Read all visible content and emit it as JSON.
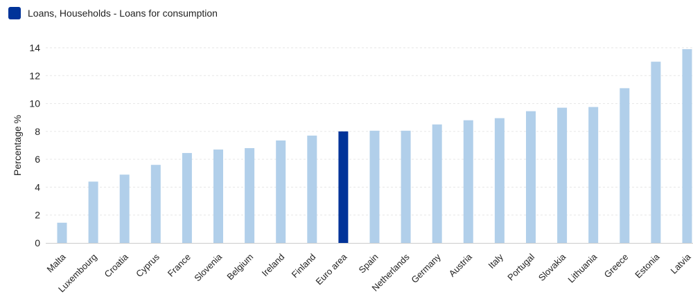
{
  "chart_data": {
    "type": "bar",
    "series": [
      {
        "name": "Loans, Households - Loans for consumption"
      }
    ],
    "categories": [
      "Malta",
      "Luxembourg",
      "Croatia",
      "Cyprus",
      "France",
      "Slovenia",
      "Belgium",
      "Ireland",
      "Finland",
      "Euro area",
      "Spain",
      "Netherlands",
      "Germany",
      "Austria",
      "Italy",
      "Portugal",
      "Slovakia",
      "Lithuania",
      "Greece",
      "Estonia",
      "Latvia"
    ],
    "values": [
      1.45,
      4.4,
      4.9,
      5.6,
      6.45,
      6.7,
      6.8,
      7.35,
      7.7,
      8.0,
      8.05,
      8.05,
      8.5,
      8.8,
      8.95,
      9.45,
      9.7,
      9.75,
      11.1,
      13.0,
      13.9
    ],
    "highlight_category": "Euro area",
    "colors": {
      "default": "#b1cfea",
      "highlight": "#003399"
    },
    "ylabel": "Percentage %",
    "xlabel": "",
    "ylim": [
      0,
      14
    ],
    "yticks": [
      0,
      2,
      4,
      6,
      8,
      10,
      12,
      14
    ],
    "grid": true,
    "legend_position": "top-left"
  }
}
